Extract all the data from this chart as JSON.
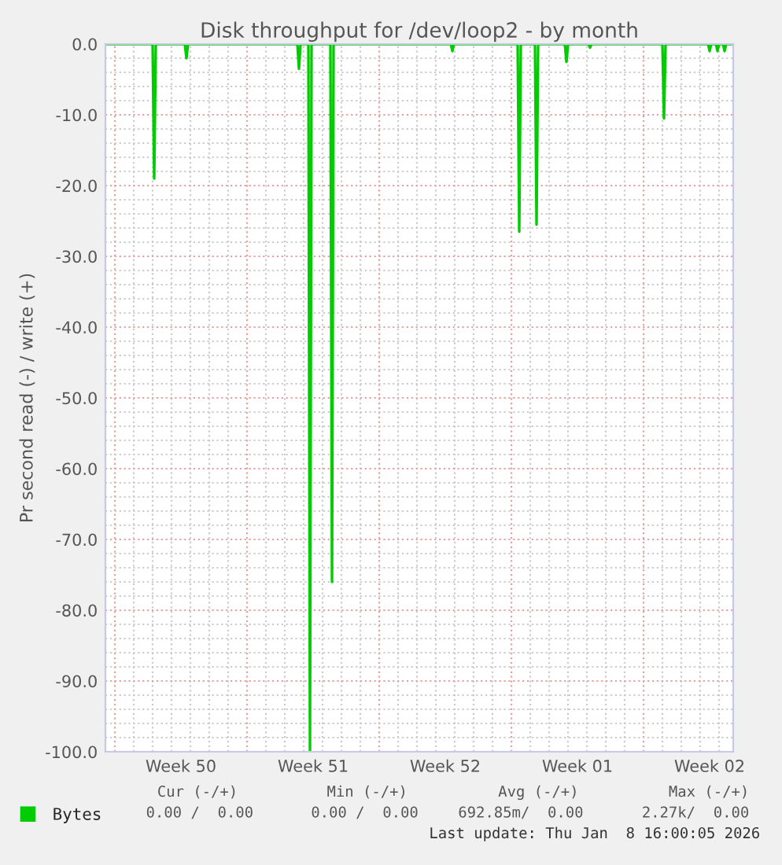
{
  "chart_data": {
    "type": "line",
    "title": "Disk throughput for /dev/loop2 - by month",
    "ylabel": "Pr second read (-) / write (+)",
    "x": [
      "2025-12-07T12:00",
      "2025-12-10T00:00",
      "2025-12-10T02:00",
      "2025-12-10T04:00",
      "2025-12-11T17:00",
      "2025-12-11T19:00",
      "2025-12-11T21:00",
      "2025-12-17T16:00",
      "2025-12-17T18:00",
      "2025-12-17T20:00",
      "2025-12-18T06:00",
      "2025-12-18T08:00",
      "2025-12-18T10:00",
      "2025-12-19T10:00",
      "2025-12-19T12:00",
      "2025-12-19T14:00",
      "2025-12-25T19:00",
      "2025-12-25T21:00",
      "2025-12-25T23:00",
      "2025-12-29T08:00",
      "2025-12-29T10:00",
      "2025-12-29T12:00",
      "2025-12-30T06:00",
      "2025-12-30T08:00",
      "2025-12-30T10:00",
      "2025-12-31T20:00",
      "2025-12-31T22:00",
      "2026-01-01T00:00",
      "2026-01-02T02:00",
      "2026-01-02T04:00",
      "2026-01-02T06:00",
      "2026-01-06T00:00",
      "2026-01-06T02:00",
      "2026-01-06T04:00",
      "2026-01-08T10:00",
      "2026-01-08T12:00",
      "2026-01-08T14:00",
      "2026-01-08T20:00",
      "2026-01-08T22:00",
      "2026-01-09T00:00",
      "2026-01-09T05:00",
      "2026-01-09T07:00",
      "2026-01-09T09:00",
      "2026-01-09T18:00"
    ],
    "series": [
      {
        "name": "Bytes",
        "color": "#00cc00",
        "values": [
          0,
          0,
          -19,
          0,
          0,
          -2,
          0,
          0,
          -3.5,
          0,
          0,
          -100,
          0,
          0,
          -76,
          0,
          0,
          -1,
          0,
          0,
          -26.5,
          0,
          0,
          -25.5,
          0,
          0,
          -2.5,
          0,
          0,
          -0.5,
          0,
          0,
          -10.5,
          0,
          0,
          -1,
          0,
          0,
          -1,
          0,
          0,
          -1,
          0,
          0
        ]
      }
    ],
    "xlim": [
      "2025-12-07T12:00",
      "2026-01-09T18:00"
    ],
    "xticks": [
      {
        "value": "2025-12-08T00:00",
        "label": null
      },
      {
        "value": "2025-12-11T12:00",
        "label": "Week 50"
      },
      {
        "value": "2025-12-15T00:00",
        "label": null
      },
      {
        "value": "2025-12-18T12:00",
        "label": "Week 51"
      },
      {
        "value": "2025-12-22T00:00",
        "label": null
      },
      {
        "value": "2025-12-25T12:00",
        "label": "Week 52"
      },
      {
        "value": "2025-12-29T00:00",
        "label": null
      },
      {
        "value": "2026-01-01T12:00",
        "label": "Week 01"
      },
      {
        "value": "2026-01-05T00:00",
        "label": null
      },
      {
        "value": "2026-01-08T12:00",
        "label": "Week 02"
      }
    ],
    "ylim": [
      -100,
      0
    ],
    "yticks": [
      {
        "value": -100,
        "label": "-100.0"
      },
      {
        "value": -90,
        "label": "-90.0"
      },
      {
        "value": -80,
        "label": "-80.0"
      },
      {
        "value": -70,
        "label": "-70.0"
      },
      {
        "value": -60,
        "label": "-60.0"
      },
      {
        "value": -50,
        "label": "-50.0"
      },
      {
        "value": -40,
        "label": "-40.0"
      },
      {
        "value": -30,
        "label": "-30.0"
      },
      {
        "value": -20,
        "label": "-20.0"
      },
      {
        "value": -10,
        "label": "-10.0"
      },
      {
        "value": 0,
        "label": "0.0"
      }
    ],
    "grid": true,
    "legend": "bottom left",
    "line_style": "solid",
    "marker": "none",
    "annotations": [
      "Cur (-/+)",
      "Min (-/+)",
      "Avg (-/+)",
      "Max (-/+)",
      "0.00 /  0.00",
      "0.00 /  0.00",
      "692.85m/  0.00",
      "2.27k/  0.00",
      "Last update: Thu Jan  8 16:00:05 2026"
    ]
  }
}
